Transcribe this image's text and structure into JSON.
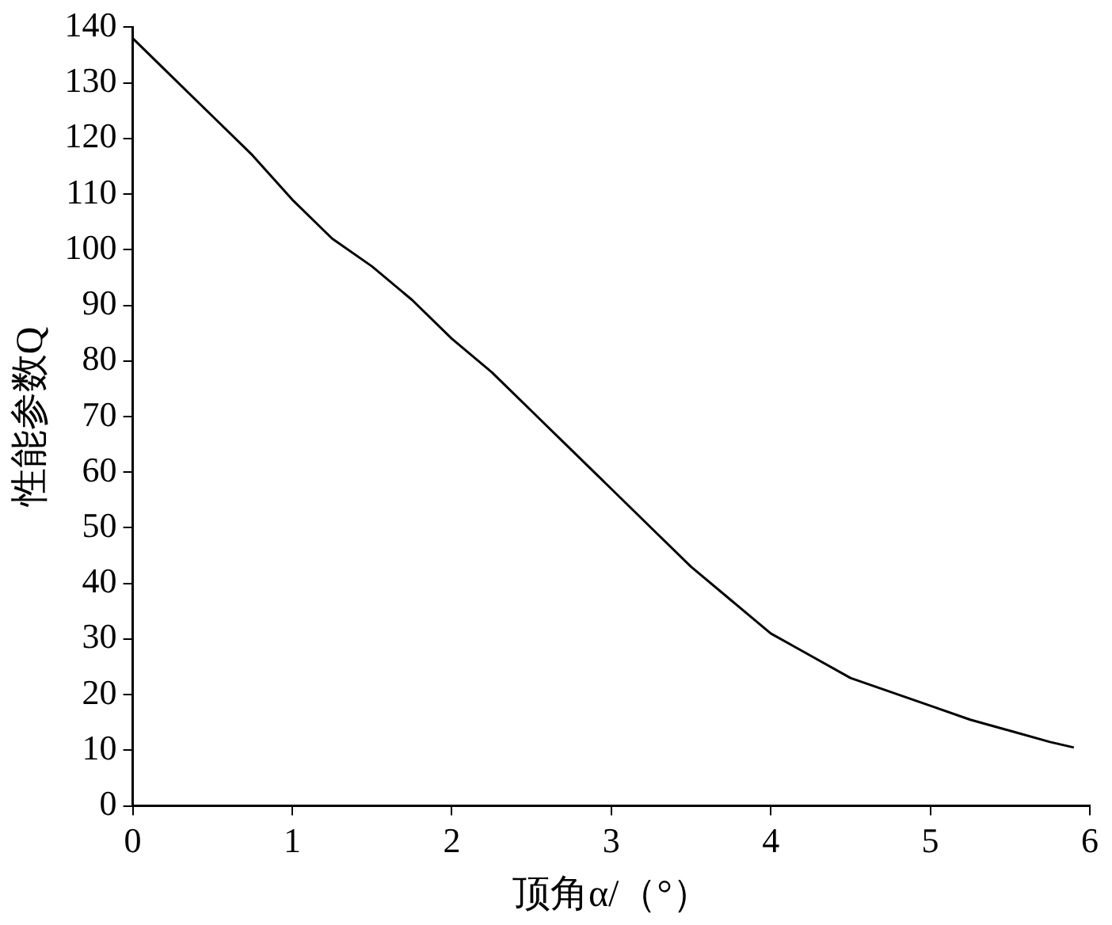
{
  "chart_data": {
    "type": "line",
    "xlabel": "顶角α/（°）",
    "ylabel": "性能参数Q",
    "x": [
      0,
      0.25,
      0.5,
      0.75,
      1,
      1.25,
      1.5,
      1.75,
      2,
      2.25,
      2.5,
      2.75,
      3,
      3.25,
      3.5,
      3.75,
      4,
      4.25,
      4.5,
      4.75,
      5,
      5.25,
      5.5,
      5.75,
      5.9
    ],
    "series": [
      {
        "color": "#000000",
        "values": [
          138,
          131,
          124,
          117,
          109,
          102,
          97,
          91,
          84,
          78,
          71,
          64,
          57,
          50,
          43,
          37,
          31,
          27,
          23,
          20.5,
          18,
          15.5,
          13.5,
          11.5,
          10.5
        ]
      }
    ],
    "xlim": [
      0,
      6
    ],
    "xticks": [
      0,
      1,
      2,
      3,
      4,
      5,
      6
    ],
    "ylim": [
      0,
      140
    ],
    "yticks": [
      0,
      10,
      20,
      30,
      40,
      50,
      60,
      70,
      80,
      90,
      100,
      110,
      120,
      130,
      140
    ],
    "grid": false,
    "legend": false,
    "marker": "none",
    "line_style": "solid"
  }
}
